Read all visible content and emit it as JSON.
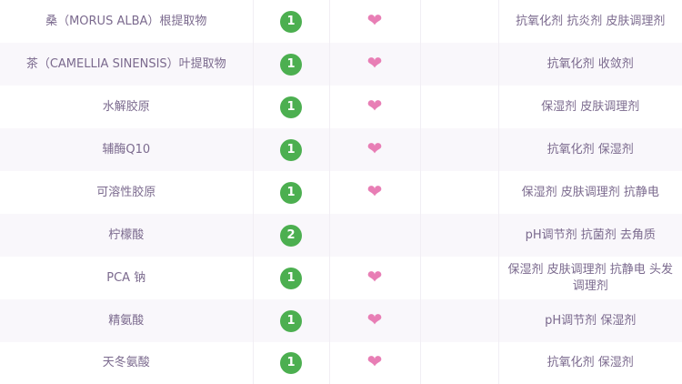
{
  "colors": {
    "text": "#7b6a8e",
    "badge": "#4caf50",
    "heart": "#e87eb5"
  },
  "rows": [
    {
      "name": "桑（MORUS ALBA）根提取物",
      "score": "1",
      "active": true,
      "functions": "抗氧化剂 抗炎剂 皮肤调理剂"
    },
    {
      "name": "茶（CAMELLIA SINENSIS）叶提取物",
      "score": "1",
      "active": true,
      "functions": "抗氧化剂 收敛剂"
    },
    {
      "name": "水解胶原",
      "score": "1",
      "active": true,
      "functions": "保湿剂 皮肤调理剂"
    },
    {
      "name": "辅酶Q10",
      "score": "1",
      "active": true,
      "functions": "抗氧化剂 保湿剂"
    },
    {
      "name": "可溶性胶原",
      "score": "1",
      "active": true,
      "functions": "保湿剂 皮肤调理剂 抗静电"
    },
    {
      "name": "柠檬酸",
      "score": "2",
      "active": false,
      "functions": "pH调节剂 抗菌剂 去角质"
    },
    {
      "name": "PCA 钠",
      "score": "1",
      "active": true,
      "functions": "保湿剂 皮肤调理剂 抗静电 头发调理剂"
    },
    {
      "name": "精氨酸",
      "score": "1",
      "active": true,
      "functions": "pH调节剂 保湿剂"
    },
    {
      "name": "天冬氨酸",
      "score": "1",
      "active": true,
      "functions": "抗氧化剂 保湿剂"
    }
  ],
  "icons": {
    "heart": "heart-icon"
  }
}
